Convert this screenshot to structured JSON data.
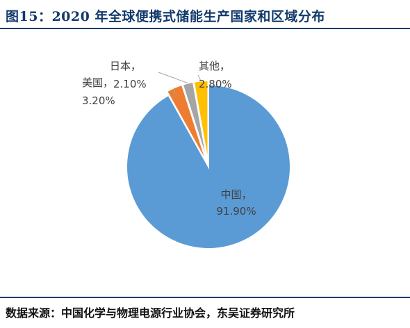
{
  "figure": {
    "title": "图15：2020 年全球便携式储能生产国家和区域分布",
    "source": "数据来源：中国化学与物理电源行业协会，东吴证券研究所"
  },
  "colors": {
    "title": "#123a6b",
    "slices": [
      "#5b9bd5",
      "#ed7d31",
      "#a5a5a5",
      "#ffc000"
    ]
  },
  "chart_data": {
    "type": "pie",
    "categories": [
      "中国",
      "美国",
      "日本",
      "其他"
    ],
    "values": [
      91.9,
      3.2,
      2.1,
      2.8
    ],
    "labels": [
      {
        "name": "中国，",
        "value": "91.90%"
      },
      {
        "name": "美国，",
        "value": "3.20%"
      },
      {
        "name": "日本，",
        "value": "2.10%"
      },
      {
        "name": "其他，",
        "value": "2.80%"
      }
    ],
    "legend": "none"
  }
}
